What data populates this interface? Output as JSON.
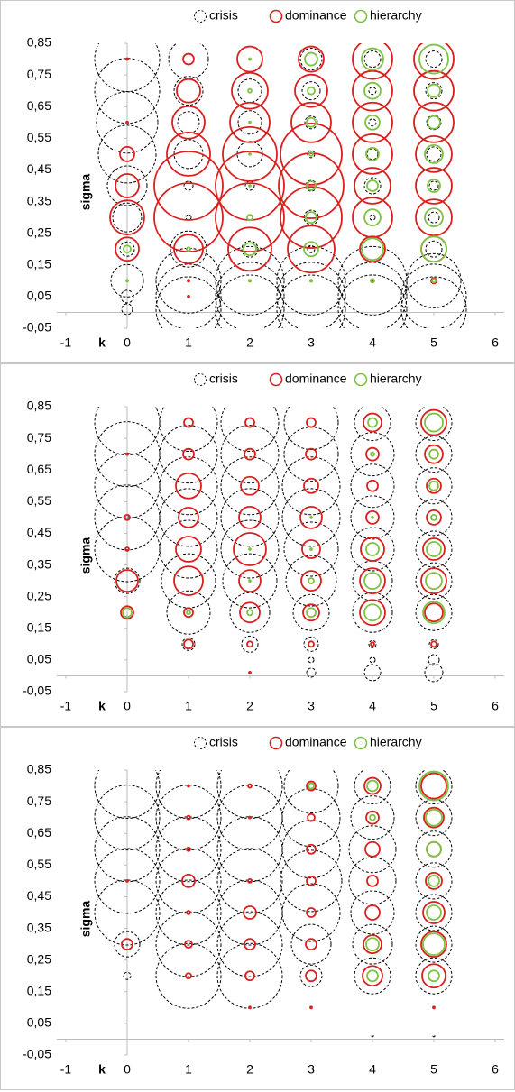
{
  "chart_data": [
    {
      "type": "bubble",
      "xlabel": "k",
      "ylabel": "sigma",
      "xlim": [
        -1,
        6
      ],
      "xticks": [
        -1,
        0,
        1,
        2,
        3,
        4,
        5,
        6
      ],
      "ylim": [
        -0.05,
        0.85
      ],
      "yticks": [
        {
          "value": -0.05,
          "label": "-0,05"
        },
        {
          "value": 0.05,
          "label": "0,05"
        },
        {
          "value": 0.15,
          "label": "0,15"
        },
        {
          "value": 0.25,
          "label": "0,25"
        },
        {
          "value": 0.35,
          "label": "0,35"
        },
        {
          "value": 0.45,
          "label": "0,45"
        },
        {
          "value": 0.55,
          "label": "0,55"
        },
        {
          "value": 0.65,
          "label": "0,65"
        },
        {
          "value": 0.75,
          "label": "0,75"
        },
        {
          "value": 0.85,
          "label": "0,85"
        }
      ],
      "x": [
        0,
        0,
        0,
        0,
        0,
        0,
        0,
        0,
        0,
        0,
        1,
        1,
        1,
        1,
        1,
        1,
        1,
        1,
        1,
        1,
        2,
        2,
        2,
        2,
        2,
        2,
        2,
        2,
        2,
        2,
        3,
        3,
        3,
        3,
        3,
        3,
        3,
        3,
        3,
        3,
        4,
        4,
        4,
        4,
        4,
        4,
        4,
        4,
        4,
        4,
        5,
        5,
        5,
        5,
        5,
        5,
        5,
        5,
        5,
        5
      ],
      "y": [
        0.01,
        0.05,
        0.1,
        0.2,
        0.3,
        0.4,
        0.5,
        0.6,
        0.7,
        0.8,
        0.01,
        0.05,
        0.1,
        0.2,
        0.3,
        0.4,
        0.5,
        0.6,
        0.7,
        0.8,
        0.01,
        0.05,
        0.1,
        0.2,
        0.3,
        0.4,
        0.5,
        0.6,
        0.7,
        0.8,
        0.01,
        0.05,
        0.1,
        0.2,
        0.3,
        0.4,
        0.5,
        0.6,
        0.7,
        0.8,
        0.01,
        0.05,
        0.1,
        0.2,
        0.3,
        0.4,
        0.5,
        0.6,
        0.7,
        0.8,
        0.01,
        0.05,
        0.1,
        0.2,
        0.3,
        0.4,
        0.5,
        0.6,
        0.7,
        0.8
      ],
      "series": [
        {
          "name": "crisis",
          "color": "#000000",
          "dashed": true,
          "sizes": [
            6,
            7,
            18,
            8,
            16,
            22,
            32,
            34,
            36,
            36,
            36,
            36,
            36,
            20,
            3,
            5,
            16,
            12,
            16,
            22,
            38,
            38,
            38,
            9,
            3,
            5,
            14,
            13,
            13,
            14,
            38,
            38,
            38,
            4,
            8,
            6,
            4,
            7,
            10,
            12,
            38,
            38,
            38,
            12,
            3,
            9,
            6,
            4,
            4,
            9,
            36,
            36,
            30,
            9,
            6,
            5,
            8,
            8,
            9,
            9
          ]
        },
        {
          "name": "dominance",
          "color": "#d9201f",
          "dashed": false,
          "sizes": [
            0,
            0,
            0,
            13,
            19,
            13,
            8,
            1,
            0,
            1,
            0,
            1,
            1,
            16,
            38,
            38,
            24,
            18,
            13,
            6,
            0,
            0,
            1,
            24,
            38,
            38,
            30,
            22,
            20,
            14,
            0,
            0,
            1,
            26,
            34,
            36,
            34,
            22,
            18,
            14,
            0,
            0,
            1,
            14,
            22,
            20,
            22,
            22,
            22,
            22,
            0,
            0,
            3,
            14,
            20,
            20,
            20,
            22,
            22,
            22
          ]
        },
        {
          "name": "hierarchy",
          "color": "#7dc242",
          "dashed": false,
          "sizes": [
            0,
            0,
            1,
            4,
            0,
            0,
            0,
            0,
            0,
            0,
            0,
            0,
            0,
            2,
            0,
            0,
            0,
            0,
            0,
            0,
            0,
            0,
            1,
            7,
            3,
            1,
            1,
            1,
            2,
            1,
            0,
            0,
            1,
            8,
            6,
            5,
            2,
            5,
            4,
            7,
            0,
            0,
            2,
            12,
            9,
            6,
            7,
            8,
            9,
            12,
            0,
            0,
            2,
            14,
            10,
            7,
            10,
            7,
            7,
            16
          ]
        }
      ]
    },
    {
      "type": "bubble",
      "xlabel": "k",
      "ylabel": "sigma",
      "xlim": [
        -1,
        6
      ],
      "xticks": [
        -1,
        0,
        1,
        2,
        3,
        4,
        5,
        6
      ],
      "ylim": [
        -0.05,
        0.85
      ],
      "yticks": [
        {
          "value": -0.05,
          "label": "-0,05"
        },
        {
          "value": 0.05,
          "label": "0,05"
        },
        {
          "value": 0.15,
          "label": "0,15"
        },
        {
          "value": 0.25,
          "label": "0,25"
        },
        {
          "value": 0.35,
          "label": "0,35"
        },
        {
          "value": 0.45,
          "label": "0,45"
        },
        {
          "value": 0.55,
          "label": "0,55"
        },
        {
          "value": 0.65,
          "label": "0,65"
        },
        {
          "value": 0.75,
          "label": "0,75"
        },
        {
          "value": 0.85,
          "label": "0,85"
        }
      ],
      "x": [
        0,
        0,
        0,
        0,
        0,
        0,
        0,
        0,
        0,
        0,
        1,
        1,
        1,
        1,
        1,
        1,
        1,
        1,
        1,
        1,
        2,
        2,
        2,
        2,
        2,
        2,
        2,
        2,
        2,
        2,
        3,
        3,
        3,
        3,
        3,
        3,
        3,
        3,
        3,
        3,
        4,
        4,
        4,
        4,
        4,
        4,
        4,
        4,
        4,
        4,
        5,
        5,
        5,
        5,
        5,
        5,
        5,
        5,
        5,
        5
      ],
      "y": [
        0.01,
        0.05,
        0.1,
        0.2,
        0.3,
        0.4,
        0.5,
        0.6,
        0.7,
        0.8,
        0.01,
        0.05,
        0.1,
        0.2,
        0.3,
        0.4,
        0.5,
        0.6,
        0.7,
        0.8,
        0.01,
        0.05,
        0.1,
        0.2,
        0.3,
        0.4,
        0.5,
        0.6,
        0.7,
        0.8,
        0.01,
        0.05,
        0.1,
        0.2,
        0.3,
        0.4,
        0.5,
        0.6,
        0.7,
        0.8,
        0.01,
        0.05,
        0.1,
        0.2,
        0.3,
        0.4,
        0.5,
        0.6,
        0.7,
        0.8,
        0.01,
        0.05,
        0.1,
        0.2,
        0.3,
        0.4,
        0.5,
        0.6,
        0.7,
        0.8
      ],
      "series": [
        {
          "name": "crisis",
          "color": "#000000",
          "dashed": true,
          "sizes": [
            0,
            0,
            0,
            7,
            14,
            36,
            36,
            36,
            36,
            36,
            0,
            0,
            7,
            24,
            30,
            32,
            32,
            32,
            32,
            32,
            0,
            0,
            9,
            22,
            30,
            32,
            32,
            32,
            32,
            32,
            5,
            3,
            8,
            20,
            28,
            30,
            32,
            32,
            30,
            30,
            9,
            3,
            4,
            22,
            22,
            24,
            24,
            24,
            24,
            20,
            10,
            6,
            5,
            20,
            20,
            20,
            20,
            20,
            20,
            20
          ]
        },
        {
          "name": "dominance",
          "color": "#d9201f",
          "dashed": false,
          "sizes": [
            0,
            0,
            0,
            7,
            12,
            2,
            3,
            0,
            1,
            0,
            0,
            0,
            5,
            5,
            16,
            14,
            11,
            14,
            6,
            5,
            1,
            0,
            3,
            11,
            12,
            18,
            12,
            10,
            6,
            5,
            0,
            0,
            3,
            9,
            11,
            10,
            12,
            8,
            6,
            5,
            0,
            0,
            2,
            14,
            14,
            13,
            7,
            6,
            7,
            10,
            0,
            0,
            3,
            10,
            14,
            12,
            8,
            8,
            10,
            14
          ]
        },
        {
          "name": "hierarchy",
          "color": "#7dc242",
          "dashed": false,
          "sizes": [
            0,
            0,
            0,
            5,
            0,
            0,
            0,
            0,
            0,
            0,
            0,
            0,
            0,
            2,
            0,
            0,
            0,
            0,
            0,
            0,
            0,
            0,
            0,
            3,
            1,
            1,
            0,
            0,
            0,
            0,
            0,
            0,
            0,
            5,
            3,
            1,
            1,
            0,
            0,
            0,
            0,
            0,
            0,
            9,
            9,
            7,
            1,
            0,
            2,
            5,
            0,
            0,
            0,
            12,
            9,
            8,
            3,
            5,
            5,
            10
          ]
        }
      ]
    },
    {
      "type": "bubble",
      "xlabel": "k",
      "ylabel": "sigma",
      "xlim": [
        -1,
        6
      ],
      "xticks": [
        -1,
        0,
        1,
        2,
        3,
        4,
        5,
        6
      ],
      "ylim": [
        -0.05,
        0.85
      ],
      "yticks": [
        {
          "value": -0.05,
          "label": "-0,05"
        },
        {
          "value": 0.05,
          "label": "0,05"
        },
        {
          "value": 0.15,
          "label": "0,15"
        },
        {
          "value": 0.25,
          "label": "0,25"
        },
        {
          "value": 0.35,
          "label": "0,35"
        },
        {
          "value": 0.45,
          "label": "0,45"
        },
        {
          "value": 0.55,
          "label": "0,55"
        },
        {
          "value": 0.65,
          "label": "0,65"
        },
        {
          "value": 0.75,
          "label": "0,75"
        },
        {
          "value": 0.85,
          "label": "0,85"
        }
      ],
      "x": [
        0,
        0,
        0,
        0,
        0,
        0,
        0,
        0,
        0,
        0,
        1,
        1,
        1,
        1,
        1,
        1,
        1,
        1,
        1,
        1,
        2,
        2,
        2,
        2,
        2,
        2,
        2,
        2,
        2,
        2,
        3,
        3,
        3,
        3,
        3,
        3,
        3,
        3,
        3,
        3,
        4,
        4,
        4,
        4,
        4,
        4,
        4,
        4,
        4,
        4,
        5,
        5,
        5,
        5,
        5,
        5,
        5,
        5,
        5,
        5
      ],
      "y": [
        0.01,
        0.05,
        0.1,
        0.2,
        0.3,
        0.4,
        0.5,
        0.6,
        0.7,
        0.8,
        0.01,
        0.05,
        0.1,
        0.2,
        0.3,
        0.4,
        0.5,
        0.6,
        0.7,
        0.8,
        0.01,
        0.05,
        0.1,
        0.2,
        0.3,
        0.4,
        0.5,
        0.6,
        0.7,
        0.8,
        0.01,
        0.05,
        0.1,
        0.2,
        0.3,
        0.4,
        0.5,
        0.6,
        0.7,
        0.8,
        0.01,
        0.05,
        0.1,
        0.2,
        0.3,
        0.4,
        0.5,
        0.6,
        0.7,
        0.8,
        0.01,
        0.05,
        0.1,
        0.2,
        0.3,
        0.4,
        0.5,
        0.6,
        0.7,
        0.8
      ],
      "series": [
        {
          "name": "crisis",
          "color": "#000000",
          "dashed": true,
          "sizes": [
            0,
            0,
            0,
            4,
            14,
            36,
            36,
            36,
            36,
            36,
            0,
            0,
            0,
            36,
            36,
            36,
            36,
            36,
            36,
            36,
            0,
            0,
            0,
            36,
            36,
            36,
            36,
            36,
            36,
            36,
            0,
            0,
            0,
            12,
            22,
            32,
            34,
            32,
            32,
            30,
            1,
            0,
            0,
            20,
            22,
            24,
            26,
            26,
            24,
            20,
            1,
            0,
            0,
            20,
            20,
            20,
            20,
            20,
            20,
            20
          ]
        },
        {
          "name": "dominance",
          "color": "#d9201f",
          "dashed": false,
          "sizes": [
            0,
            0,
            0,
            0,
            6,
            0,
            1,
            0,
            0,
            0,
            0,
            0,
            0,
            3,
            4,
            2,
            7,
            2,
            2,
            1,
            0,
            0,
            1,
            5,
            6,
            7,
            2,
            0,
            1,
            2,
            0,
            0,
            1,
            6,
            6,
            5,
            5,
            5,
            4,
            5,
            0,
            0,
            0,
            11,
            10,
            8,
            6,
            8,
            7,
            9,
            0,
            0,
            1,
            13,
            14,
            12,
            9,
            8,
            11,
            14
          ]
        },
        {
          "name": "hierarchy",
          "color": "#7dc242",
          "dashed": false,
          "sizes": [
            0,
            0,
            0,
            0,
            0,
            0,
            0,
            0,
            0,
            0,
            0,
            0,
            0,
            0,
            0,
            0,
            0,
            0,
            0,
            0,
            0,
            0,
            0,
            0,
            0,
            0,
            0,
            0,
            0,
            0,
            0,
            0,
            0,
            0,
            0,
            0,
            0,
            0,
            0,
            3,
            0,
            0,
            0,
            6,
            7,
            0,
            0,
            0,
            3,
            6,
            0,
            0,
            0,
            6,
            12,
            8,
            6,
            8,
            9,
            16
          ]
        }
      ]
    }
  ]
}
